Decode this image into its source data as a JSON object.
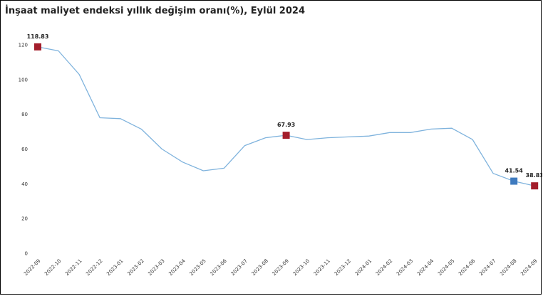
{
  "chart_data": {
    "type": "line",
    "title": "İnşaat maliyet endeksi yıllık değişim oranı(%), Eylül 2024",
    "xlabel": "",
    "ylabel": "",
    "ylim": [
      0,
      120
    ],
    "yticks": [
      0,
      20,
      40,
      60,
      80,
      100,
      120
    ],
    "grid": false,
    "legend": "none",
    "line_color": "#7fb3dd",
    "categories": [
      "2022-09",
      "2022-10",
      "2022-11",
      "2022-12",
      "2023-01",
      "2023-02",
      "2023-03",
      "2023-04",
      "2023-05",
      "2023-06",
      "2023-07",
      "2023-08",
      "2023-09",
      "2023-10",
      "2023-11",
      "2023-12",
      "2024-01",
      "2024-02",
      "2024-03",
      "2024-04",
      "2024-05",
      "2024-06",
      "2024-07",
      "2024-08",
      "2024-09"
    ],
    "values": [
      118.83,
      116.5,
      103,
      78,
      77.5,
      71.5,
      60,
      52.5,
      47.5,
      49,
      62,
      66.5,
      67.93,
      65.5,
      66.5,
      67,
      67.5,
      69.5,
      69.5,
      71.5,
      72,
      65.5,
      46,
      41.54,
      38.83
    ],
    "highlights": [
      {
        "index": 0,
        "label": "118.83",
        "color": "#a31d2b"
      },
      {
        "index": 12,
        "label": "67.93",
        "color": "#a31d2b"
      },
      {
        "index": 23,
        "label": "41.54",
        "color": "#3f7bbf"
      },
      {
        "index": 24,
        "label": "38.83",
        "color": "#a31d2b"
      }
    ]
  }
}
